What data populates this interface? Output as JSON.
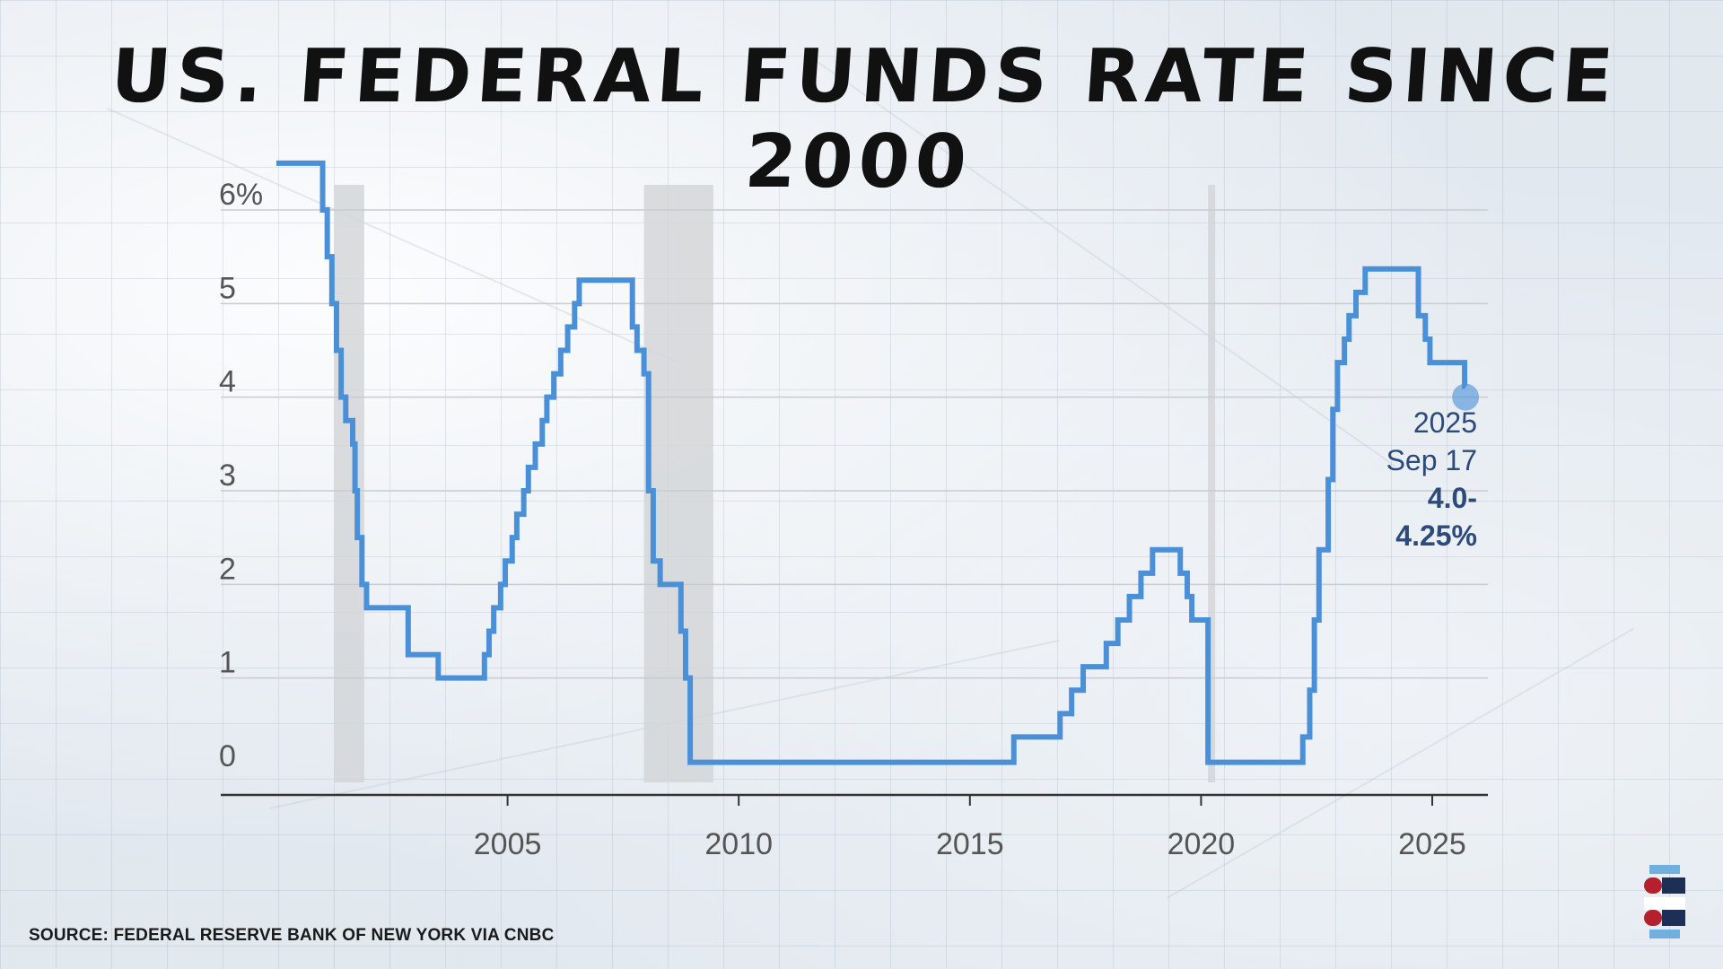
{
  "title": "US. FEDERAL FUNDS RATE SINCE 2000",
  "source": "SOURCE: FEDERAL RESERVE BANK OF NEW YORK VIA CNBC",
  "colors": {
    "line": "#4a90d9",
    "recession": "#d4d6d8",
    "grid": "#c8ccd0",
    "annotation": "#2c4a7a",
    "logo_dark": "#1c2f55",
    "logo_red": "#b5202e",
    "logo_blue": "#6fb0e0"
  },
  "annotation": {
    "year": "2025",
    "date": "Sep 17",
    "value_line1": "4.0-",
    "value_line2": "4.25%"
  },
  "chart_data": {
    "type": "line",
    "title": "US. FEDERAL FUNDS RATE SINCE 2000",
    "xlim": [
      1999.75,
      2026.25
    ],
    "ylim": [
      0,
      6.5
    ],
    "y_ticks": [
      0,
      1,
      2,
      3,
      4,
      5,
      6
    ],
    "y_tick_labels": [
      "0",
      "1",
      "2",
      "3",
      "4",
      "5",
      "6%"
    ],
    "x_ticks": [
      2005,
      2010,
      2015,
      2020,
      2025
    ],
    "x_tick_labels": [
      "2005",
      "2010",
      "2015",
      "2020",
      "2025"
    ],
    "grid": "horizontal",
    "recessions": [
      [
        2001.25,
        2001.9
      ],
      [
        2007.95,
        2009.45
      ],
      [
        2020.15,
        2020.3
      ]
    ],
    "series": [
      {
        "step": true,
        "points": [
          [
            2000.0,
            6.5
          ],
          [
            2001.0,
            6.0
          ],
          [
            2001.1,
            5.5
          ],
          [
            2001.2,
            5.0
          ],
          [
            2001.3,
            4.5
          ],
          [
            2001.4,
            4.0
          ],
          [
            2001.5,
            3.75
          ],
          [
            2001.65,
            3.5
          ],
          [
            2001.7,
            3.0
          ],
          [
            2001.75,
            2.5
          ],
          [
            2001.85,
            2.0
          ],
          [
            2001.95,
            1.75
          ],
          [
            2002.85,
            1.25
          ],
          [
            2003.5,
            1.0
          ],
          [
            2004.5,
            1.25
          ],
          [
            2004.6,
            1.5
          ],
          [
            2004.7,
            1.75
          ],
          [
            2004.85,
            2.0
          ],
          [
            2004.95,
            2.25
          ],
          [
            2005.1,
            2.5
          ],
          [
            2005.2,
            2.75
          ],
          [
            2005.35,
            3.0
          ],
          [
            2005.45,
            3.25
          ],
          [
            2005.6,
            3.5
          ],
          [
            2005.75,
            3.75
          ],
          [
            2005.85,
            4.0
          ],
          [
            2006.0,
            4.25
          ],
          [
            2006.15,
            4.5
          ],
          [
            2006.3,
            4.75
          ],
          [
            2006.45,
            5.0
          ],
          [
            2006.55,
            5.25
          ],
          [
            2007.7,
            4.75
          ],
          [
            2007.8,
            4.5
          ],
          [
            2007.95,
            4.25
          ],
          [
            2008.05,
            3.0
          ],
          [
            2008.15,
            2.25
          ],
          [
            2008.3,
            2.0
          ],
          [
            2008.75,
            1.5
          ],
          [
            2008.85,
            1.0
          ],
          [
            2008.95,
            0.1
          ],
          [
            2015.95,
            0.37
          ],
          [
            2016.95,
            0.62
          ],
          [
            2017.2,
            0.87
          ],
          [
            2017.45,
            1.12
          ],
          [
            2017.95,
            1.37
          ],
          [
            2018.2,
            1.62
          ],
          [
            2018.45,
            1.87
          ],
          [
            2018.7,
            2.12
          ],
          [
            2018.95,
            2.37
          ],
          [
            2019.55,
            2.12
          ],
          [
            2019.7,
            1.87
          ],
          [
            2019.8,
            1.62
          ],
          [
            2020.15,
            0.1
          ],
          [
            2022.2,
            0.37
          ],
          [
            2022.35,
            0.87
          ],
          [
            2022.45,
            1.62
          ],
          [
            2022.55,
            2.37
          ],
          [
            2022.75,
            3.12
          ],
          [
            2022.85,
            3.87
          ],
          [
            2022.95,
            4.37
          ],
          [
            2023.1,
            4.62
          ],
          [
            2023.2,
            4.87
          ],
          [
            2023.35,
            5.12
          ],
          [
            2023.55,
            5.37
          ],
          [
            2024.7,
            4.87
          ],
          [
            2024.85,
            4.62
          ],
          [
            2024.95,
            4.37
          ],
          [
            2025.7,
            4.12
          ],
          [
            2025.72,
            4.12
          ]
        ]
      }
    ],
    "highlight_point": {
      "x": 2025.72,
      "y": 4.0
    }
  }
}
